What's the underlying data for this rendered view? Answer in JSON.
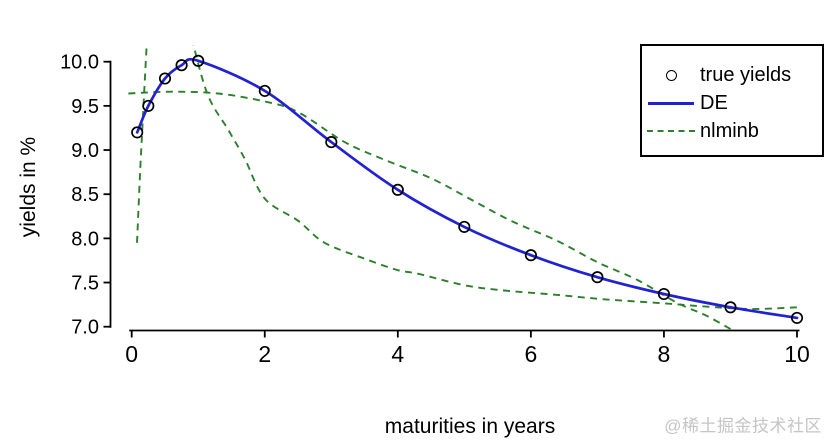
{
  "watermark": "@稀土掘金技术社区",
  "chart_data": {
    "type": "line",
    "title": "",
    "xlabel": "maturities in years",
    "ylabel": "yields in %",
    "xlim": [
      0,
      10
    ],
    "ylim": [
      7.0,
      10.0
    ],
    "grid": false,
    "legend": {
      "position": "top-right"
    },
    "x_ticks": {
      "values": [
        0,
        2,
        4,
        6,
        8,
        10
      ],
      "labels": [
        "0",
        "2",
        "4",
        "6",
        "8",
        "10"
      ]
    },
    "y_ticks": {
      "values": [
        7.0,
        7.5,
        8.0,
        8.5,
        9.0,
        9.5,
        10.0
      ],
      "labels": [
        "7.0",
        "7.5",
        "8.0",
        "8.5",
        "9.0",
        "9.5",
        "10.0"
      ]
    },
    "series": [
      {
        "name": "true yields",
        "kind": "scatter",
        "marker": "open-circle",
        "color": "#000000",
        "x": [
          0.083,
          0.25,
          0.5,
          0.75,
          1,
          2,
          3,
          4,
          5,
          6,
          7,
          8,
          9,
          10
        ],
        "y": [
          9.2,
          9.5,
          9.81,
          9.96,
          10.01,
          9.67,
          9.09,
          8.55,
          8.13,
          7.81,
          7.56,
          7.37,
          7.22,
          7.1
        ]
      },
      {
        "name": "DE",
        "kind": "line",
        "style": "solid",
        "color": "#2222d2",
        "x": [
          0.083,
          0.25,
          0.5,
          0.75,
          1,
          2,
          3,
          4,
          5,
          6,
          7,
          8,
          9,
          10
        ],
        "y": [
          9.2,
          9.5,
          9.81,
          9.96,
          10.01,
          9.67,
          9.09,
          8.55,
          8.13,
          7.81,
          7.56,
          7.37,
          7.22,
          7.1
        ]
      },
      {
        "name": "nlminb",
        "kind": "line",
        "style": "dashed",
        "color": "#2c7f2c",
        "segments": [
          [
            [
              0.08,
              7.95
            ],
            [
              0.13,
              8.8
            ],
            [
              0.18,
              9.55
            ],
            [
              0.24,
              10.4
            ]
          ],
          [
            [
              0.86,
              10.4
            ],
            [
              1.13,
              9.65
            ],
            [
              1.45,
              9.23
            ],
            [
              1.7,
              8.9
            ],
            [
              2.0,
              8.45
            ],
            [
              2.5,
              8.2
            ],
            [
              2.9,
              7.95
            ],
            [
              3.5,
              7.77
            ],
            [
              4.0,
              7.64
            ],
            [
              4.3,
              7.6
            ],
            [
              5.0,
              7.47
            ],
            [
              5.6,
              7.41
            ],
            [
              6.4,
              7.36
            ],
            [
              7.1,
              7.31
            ],
            [
              7.9,
              7.27
            ],
            [
              8.6,
              7.23
            ],
            [
              9.3,
              7.2
            ],
            [
              10.0,
              7.22
            ]
          ],
          [
            [
              -0.05,
              9.64
            ],
            [
              0.6,
              9.66
            ],
            [
              1.3,
              9.64
            ],
            [
              2.0,
              9.55
            ],
            [
              2.5,
              9.43
            ],
            [
              3.2,
              9.09
            ],
            [
              3.8,
              8.89
            ],
            [
              4.5,
              8.68
            ],
            [
              5.1,
              8.44
            ],
            [
              5.7,
              8.2
            ],
            [
              6.4,
              7.97
            ],
            [
              7.0,
              7.73
            ],
            [
              7.6,
              7.53
            ],
            [
              8.2,
              7.27
            ],
            [
              8.65,
              7.12
            ],
            [
              9.1,
              6.93
            ]
          ]
        ]
      }
    ]
  }
}
